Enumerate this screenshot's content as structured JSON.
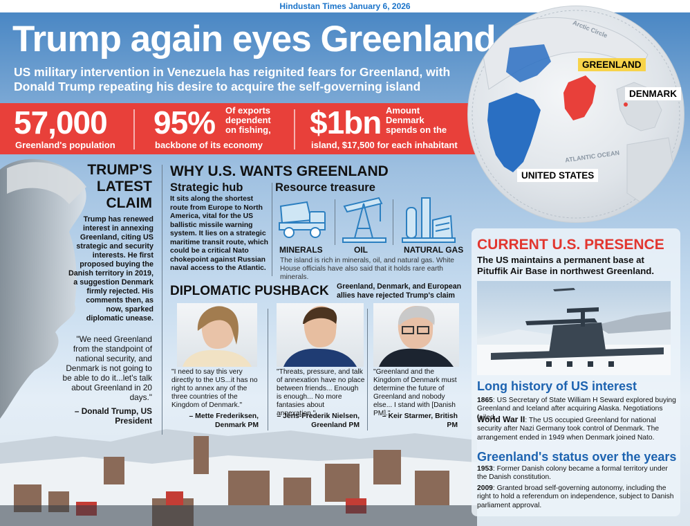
{
  "source": "Hindustan Times January 6, 2026",
  "title": "Trump again eyes Greenland",
  "subtitle": "US military intervention in Venezuela has reignited fears for Greenland, with Donald Trump repeating his desire to acquire the self-governing island",
  "stats": [
    {
      "value": "57,000",
      "label": "Greenland's population"
    },
    {
      "value": "95%",
      "label_top": "Of exports dependent on fishing,",
      "label_bottom": "backbone of its economy"
    },
    {
      "value": "$1bn",
      "label_top": "Amount Denmark spends on the",
      "label_bottom": "island, $17,500 for each inhabitant"
    }
  ],
  "map": {
    "labels": {
      "greenland": "GREENLAND",
      "denmark": "DENMARK",
      "us": "UNITED STATES",
      "arctic": "Arctic Circle",
      "atlantic": "ATLANTIC OCEAN"
    },
    "colors": {
      "greenland": "#e8403a",
      "us": "#2a6fc2",
      "highlight": "#f7d34a"
    }
  },
  "claim": {
    "heading": "TRUMP'S LATEST CLAIM",
    "body": "Trump has renewed interest in annexing Greenland, citing US strategic and security interests. He first proposed buying the Danish territory in 2019, a suggestion Denmark firmly rejected. His comments then, as now, sparked diplomatic unease.",
    "quote": "\"We need Greenland from the standpoint of national security, and Denmark is not going to be able to do it...let's talk about Greenland in 20 days.\"",
    "quote_by": "– Donald Trump, US President"
  },
  "why": {
    "heading": "WHY U.S. WANTS GREENLAND",
    "hub_heading": "Strategic hub",
    "hub_body": "It sits along the shortest route from Europe to North America, vital for the US ballistic missile warning system. It lies on a strategic maritime transit route, which could be a critical Nato chokepoint against Russian naval access to the Atlantic.",
    "resource_heading": "Resource treasure",
    "resources": [
      {
        "label": "MINERALS",
        "icon": "dump-truck-icon"
      },
      {
        "label": "OIL",
        "icon": "oil-pump-icon"
      },
      {
        "label": "NATURAL GAS",
        "icon": "gas-plant-icon"
      }
    ],
    "resource_note": "The island is rich in minerals, oil, and natural gas. White House officials have also said that it holds rare earth minerals."
  },
  "diplomatic": {
    "heading": "DIPLOMATIC PUSHBACK",
    "sub": "Greenland, Denmark, and European allies have rejected Trump's claim",
    "people": [
      {
        "quote": "\"I need to say this very directly to the US...it has no right to annex any of the three countries of the Kingdom of Denmark.\"",
        "by": "– Mette Frederiksen, Denmark PM"
      },
      {
        "quote": "\"Threats, pressure, and talk of annexation have no place between friends... Enough is enough... No more fantasies about annexation.\"",
        "by": "– Jens-Frederik Nielsen, Greenland PM"
      },
      {
        "quote": "\"Greenland and the Kingdom of Denmark must determine the future of Greenland and nobody else... I stand with [Danish PM].\"",
        "by": "– Keir Starmer, British PM"
      }
    ]
  },
  "presence": {
    "heading": "CURRENT U.S. PRESENCE",
    "body": "The US maintains a permanent base at Pituffik Air Base in northwest Greenland."
  },
  "history": {
    "heading": "Long history of US interest",
    "items": [
      {
        "year": "1865",
        "text": ": US Secretary of State William H Seward explored buying Greenland and Iceland after acquiring Alaska. Negotiations failed."
      },
      {
        "year": "World War II",
        "text": ": The US occupied Greenland for national security after Nazi Germany took control of Denmark. The arrangement ended in 1949 when Denmark joined Nato."
      }
    ]
  },
  "status": {
    "heading": "Greenland's status over the years",
    "items": [
      {
        "year": "1953",
        "text": ": Former Danish colony became a formal territory under the Danish constitution."
      },
      {
        "year": "2009",
        "text": ": Granted broad self-governing autonomy, including the right to hold a referendum on independence, subject to Danish parliament approval."
      }
    ]
  }
}
